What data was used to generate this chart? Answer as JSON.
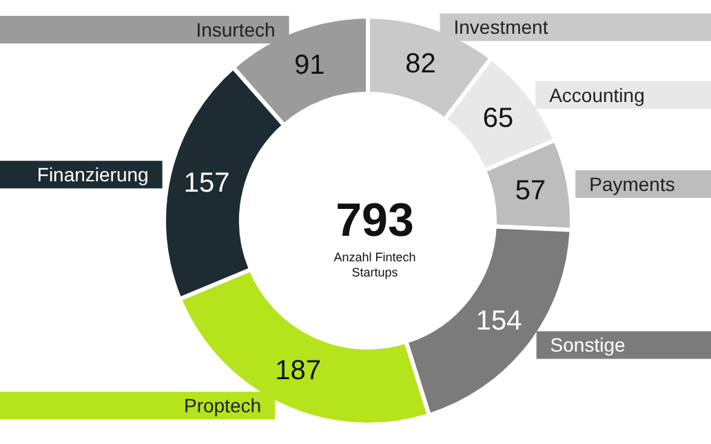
{
  "chart_data": {
    "type": "donut",
    "title": "793",
    "subtitle": "Anzahl Fintech\nStartups",
    "categories": [
      "Investment",
      "Accounting",
      "Payments",
      "Sonstige",
      "Proptech",
      "Finanzierung",
      "Insurtech"
    ],
    "values": [
      82,
      65,
      57,
      154,
      187,
      157,
      91
    ],
    "colors": [
      "#c9c9c9",
      "#e8e8e8",
      "#bdbdbd",
      "#7b7b7b",
      "#b5e31c",
      "#1d2b33",
      "#9b9b9b"
    ],
    "data_labels": true,
    "legend": false
  }
}
